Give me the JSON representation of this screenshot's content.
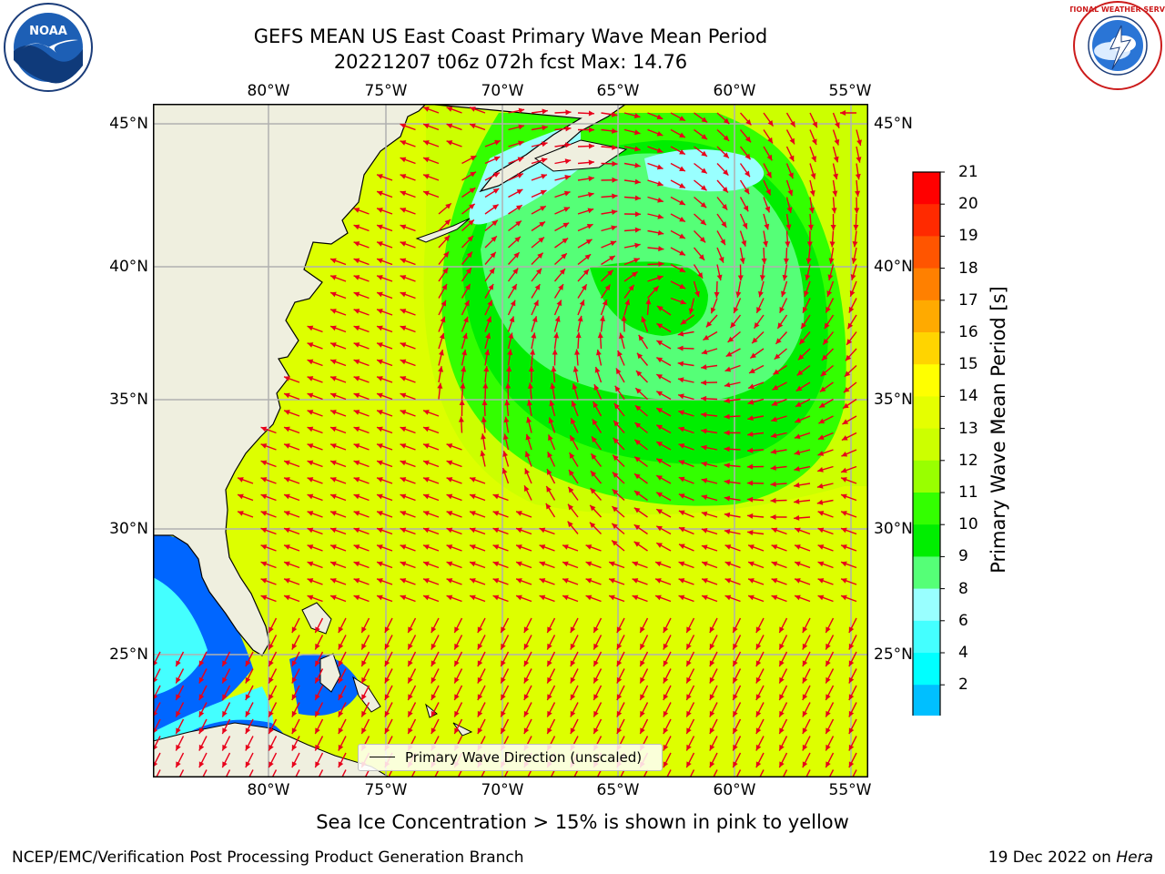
{
  "title": {
    "line1": "GEFS MEAN US East Coast Primary Wave Mean Period",
    "line2": "20221207 t06z 072h fcst   Max: 14.76"
  },
  "map": {
    "lon_labels": [
      "80°W",
      "75°W",
      "70°W",
      "65°W",
      "60°W",
      "55°W"
    ],
    "lat_labels": [
      "45°N",
      "40°N",
      "35°N",
      "30°N",
      "25°N"
    ],
    "colors": {
      "land": "#efefdf",
      "arrow": "#e8001a",
      "grid": "#b0b0b0"
    }
  },
  "legend": {
    "text": "Primary Wave Direction (unscaled)"
  },
  "colorbar": {
    "label": "Primary Wave Mean Period [s]",
    "ticks": [
      "21",
      "20",
      "19",
      "18",
      "17",
      "16",
      "15",
      "14",
      "13",
      "12",
      "11",
      "10",
      "9",
      "8",
      "6",
      "4",
      "2"
    ],
    "colors": [
      "#ff0000",
      "#ff2a00",
      "#ff5500",
      "#ff8000",
      "#ffaa00",
      "#ffd400",
      "#ffff00",
      "#e5ff00",
      "#ccff00",
      "#99ff00",
      "#33ff00",
      "#00ee00",
      "#55ff77",
      "#99ffff",
      "#44ffff",
      "#00ffff",
      "#00bfff",
      "#0066ff"
    ],
    "extend_color": "#0000ff"
  },
  "caption": "Sea Ice Concentration > 15% is shown in pink to yellow",
  "footer": {
    "left": "NCEP/EMC/Verification Post Processing Product Generation Branch",
    "date": "19 Dec 2022 on ",
    "host": "Hera"
  },
  "logos": {
    "noaa": "NOAA",
    "nws": "NATIONAL WEATHER SERVICE"
  }
}
